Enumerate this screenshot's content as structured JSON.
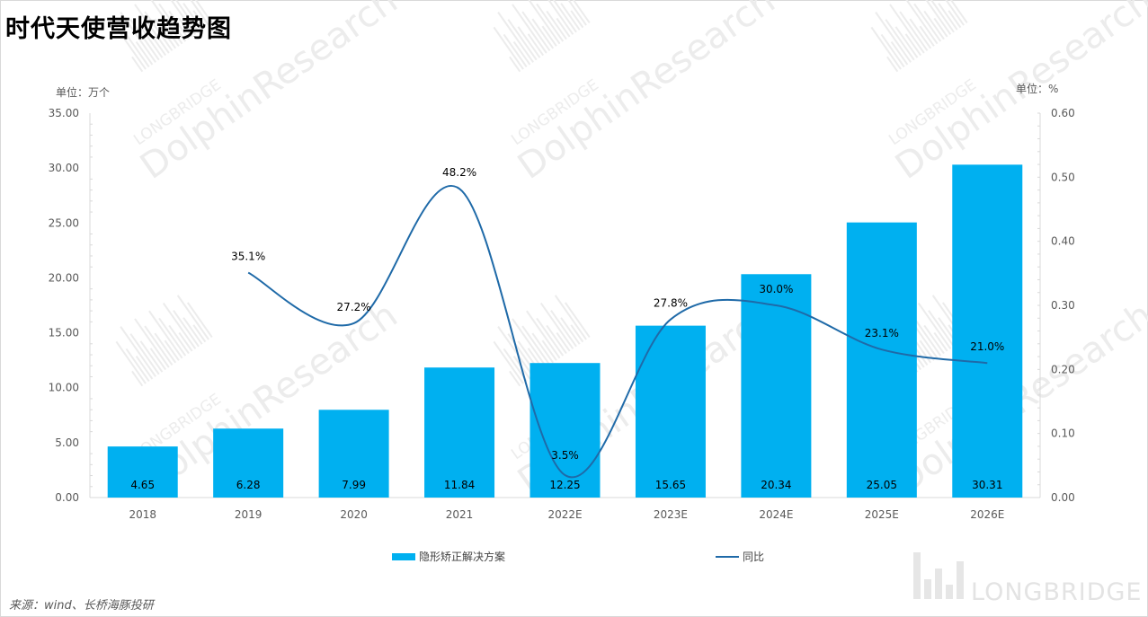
{
  "title": "时代天使营收趋势图",
  "unit_left": "单位：万个",
  "unit_right": "单位：%",
  "source": "来源：wind、长桥海豚投研",
  "brand": "LONGBRIDGE",
  "watermark": {
    "line1": "LONGBRIDGE",
    "line2": "DolphinResearch"
  },
  "colors": {
    "bar": "#00b0f0",
    "line": "#1f6aa8",
    "axis": "#d9d9d9",
    "watermark": "#ececec"
  },
  "chart_data": {
    "type": "bar",
    "categories": [
      "2018",
      "2019",
      "2020",
      "2021",
      "2022E",
      "2023E",
      "2024E",
      "2025E",
      "2026E"
    ],
    "series": [
      {
        "name": "隐形矫正解决方案",
        "type": "bar",
        "axis": "left",
        "values": [
          4.65,
          6.28,
          7.99,
          11.84,
          12.25,
          15.65,
          20.34,
          25.05,
          30.31
        ],
        "labels": [
          "4.65",
          "6.28",
          "7.99",
          "11.84",
          "12.25",
          "15.65",
          "20.34",
          "25.05",
          "30.31"
        ]
      },
      {
        "name": "同比",
        "type": "line",
        "axis": "right",
        "values": [
          null,
          0.351,
          0.272,
          0.482,
          0.035,
          0.278,
          0.3,
          0.231,
          0.21
        ],
        "labels": [
          "",
          "35.1%",
          "27.2%",
          "48.2%",
          "3.5%",
          "27.8%",
          "30.0%",
          "23.1%",
          "21.0%"
        ]
      }
    ],
    "y_left": {
      "min": 0,
      "max": 35,
      "ticks": [
        "0.00",
        "5.00",
        "10.00",
        "15.00",
        "20.00",
        "25.00",
        "30.00",
        "35.00"
      ]
    },
    "y_right": {
      "min": 0,
      "max": 0.6,
      "ticks": [
        "0.00",
        "0.10",
        "0.20",
        "0.30",
        "0.40",
        "0.50",
        "0.60"
      ]
    },
    "legend_position": "bottom",
    "grid": false
  }
}
